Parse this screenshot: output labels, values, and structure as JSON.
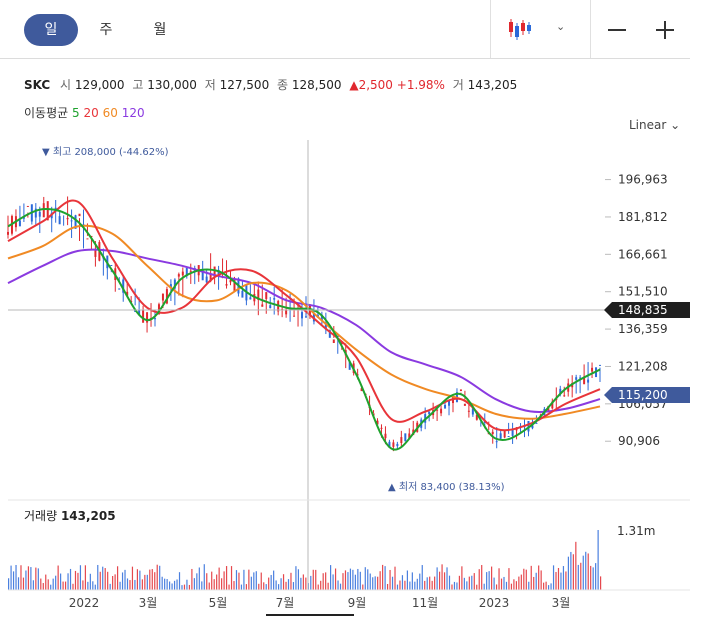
{
  "toolbar": {
    "periods": [
      "일",
      "주",
      "월"
    ],
    "active_period": "일"
  },
  "quote": {
    "symbol": "SKC",
    "open_label": "시",
    "open": "129,000",
    "high_label": "고",
    "high": "130,000",
    "low_label": "저",
    "low": "127,500",
    "close_label": "종",
    "close": "128,500",
    "change": "▲2,500",
    "change_pct": "+1.98%",
    "volume_label": "거",
    "volume": "143,205"
  },
  "ma": {
    "label": "이동평균",
    "periods": [
      "5",
      "20",
      "60",
      "120"
    ],
    "colors": [
      "#1fa22e",
      "#e8353a",
      "#f08a24",
      "#8a3ae0"
    ]
  },
  "scale_label": "Linear",
  "annotations": {
    "high": "▼ 최고 208,000 (-44.62%)",
    "low": "▲ 최저 83,400 (38.13%)"
  },
  "volume_panel": {
    "label": "거래량",
    "value": "143,205",
    "axis_max": "1.31m"
  },
  "price_tags": {
    "crosshair": "148,835",
    "last": "115,200"
  },
  "colors": {
    "up": "#e0282e",
    "down": "#2c6ad9",
    "accent": "#3f5a9c",
    "crosshair_tag": "#1f1f1f"
  },
  "chart_data": {
    "type": "line",
    "title": "",
    "y_ticks": [
      90906,
      106057,
      121208,
      136359,
      151510,
      166661,
      181812,
      196963
    ],
    "y_tick_labels": [
      "90,906",
      "106,057",
      "121,208",
      "136,359",
      "151,510",
      "166,661",
      "181,812",
      "196,963"
    ],
    "ylim": [
      76000,
      213000
    ],
    "x_ticks": [
      "2022",
      "3월",
      "5월",
      "7월",
      "9월",
      "11월",
      "2023",
      "3월"
    ],
    "x": [
      "2021-11",
      "2021-12",
      "2022-01",
      "2022-02",
      "2022-03",
      "2022-04",
      "2022-05",
      "2022-06",
      "2022-07",
      "2022-08",
      "2022-09",
      "2022-10",
      "2022-11",
      "2022-12",
      "2023-01",
      "2023-02",
      "2023-03",
      "2023-04"
    ],
    "series": [
      {
        "name": "5",
        "values": [
          178000,
          185000,
          180000,
          160000,
          140000,
          157000,
          160000,
          150000,
          145000,
          142000,
          118000,
          88000,
          100000,
          110000,
          92000,
          97000,
          112000,
          120000
        ]
      },
      {
        "name": "20",
        "values": [
          172000,
          180000,
          188000,
          165000,
          145000,
          145000,
          158000,
          160000,
          150000,
          138000,
          125000,
          100000,
          103000,
          108000,
          96000,
          98000,
          106000,
          112000
        ]
      },
      {
        "name": "60",
        "values": [
          165000,
          170000,
          178000,
          175000,
          162000,
          150000,
          148000,
          155000,
          152000,
          140000,
          128000,
          118000,
          112000,
          108000,
          102000,
          100000,
          102000,
          105000
        ]
      },
      {
        "name": "120",
        "values": [
          155000,
          162000,
          168000,
          168000,
          165000,
          162000,
          158000,
          155000,
          148000,
          145000,
          138000,
          127000,
          122000,
          117000,
          108000,
          103000,
          104000,
          108000
        ]
      }
    ],
    "volume_max": 1310000,
    "grid": false
  }
}
